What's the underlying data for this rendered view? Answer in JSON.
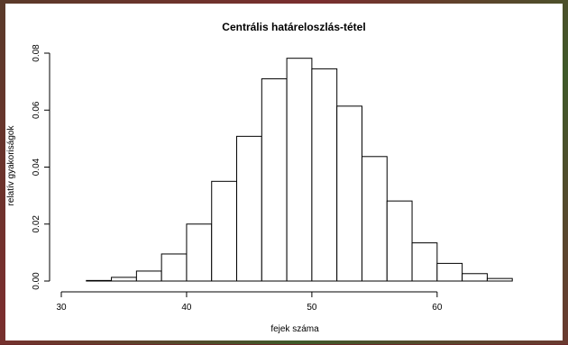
{
  "chart_data": {
    "type": "bar",
    "title": "Centrális határeloszlás-tétel",
    "xlabel": "fejek száma",
    "ylabel": "relatív gyakoriságok",
    "bin_width": 2,
    "bins": [
      {
        "x0": 32,
        "x1": 34,
        "value": 0.0002
      },
      {
        "x0": 34,
        "x1": 36,
        "value": 0.0013
      },
      {
        "x0": 36,
        "x1": 38,
        "value": 0.0035
      },
      {
        "x0": 38,
        "x1": 40,
        "value": 0.0095
      },
      {
        "x0": 40,
        "x1": 42,
        "value": 0.02
      },
      {
        "x0": 42,
        "x1": 44,
        "value": 0.035
      },
      {
        "x0": 44,
        "x1": 46,
        "value": 0.0508
      },
      {
        "x0": 46,
        "x1": 48,
        "value": 0.071
      },
      {
        "x0": 48,
        "x1": 50,
        "value": 0.0782
      },
      {
        "x0": 50,
        "x1": 52,
        "value": 0.0745
      },
      {
        "x0": 52,
        "x1": 54,
        "value": 0.0614
      },
      {
        "x0": 54,
        "x1": 56,
        "value": 0.0437
      },
      {
        "x0": 56,
        "x1": 58,
        "value": 0.0281
      },
      {
        "x0": 58,
        "x1": 60,
        "value": 0.0134
      },
      {
        "x0": 60,
        "x1": 62,
        "value": 0.0062
      },
      {
        "x0": 62,
        "x1": 64,
        "value": 0.0026
      },
      {
        "x0": 64,
        "x1": 66,
        "value": 0.0009
      }
    ],
    "xlim": [
      30,
      68
    ],
    "ylim": [
      0,
      0.08
    ],
    "x_ticks": [
      30,
      40,
      50,
      60
    ],
    "x_tick_labels": [
      "30",
      "40",
      "50",
      "60"
    ],
    "y_ticks": [
      0,
      0.02,
      0.04,
      0.06,
      0.08
    ],
    "y_tick_labels": [
      "0.00",
      "0.02",
      "0.04",
      "0.06",
      "0.08"
    ],
    "grid": false,
    "legend": "none"
  },
  "colors": {
    "bar_fill": "#ffffff",
    "bar_stroke": "#000000",
    "axis": "#000000"
  }
}
